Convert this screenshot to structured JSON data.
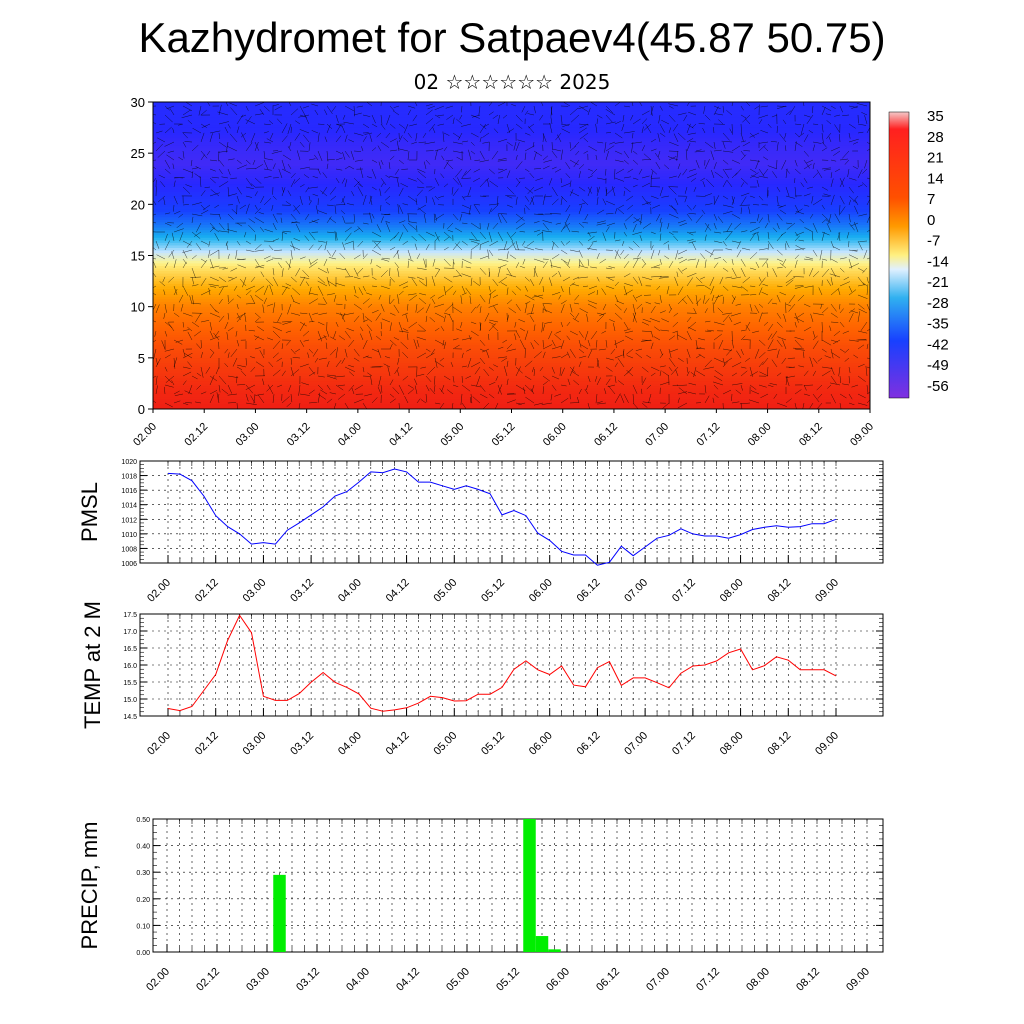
{
  "title": "Kazhydromet for Satpaev4(45.87 50.75)",
  "subtitle": "02 ☆☆☆☆☆☆ 2025",
  "time_ticks": [
    "02.00",
    "02.12",
    "03.00",
    "03.12",
    "04.00",
    "04.12",
    "05.00",
    "05.12",
    "06.00",
    "06.12",
    "07.00",
    "07.12",
    "08.00",
    "08.12",
    "09.00"
  ],
  "colors": {
    "pmsl": "#0000ff",
    "temp": "#ff0000",
    "precip": "#00ee00"
  },
  "chart_data": [
    {
      "type": "heatmap",
      "title": "",
      "ylabel": "",
      "ylim": [
        0,
        30
      ],
      "yticks": [
        "0",
        "5",
        "10",
        "15",
        "20",
        "25",
        "30"
      ],
      "colorbar_labels": [
        "35",
        "28",
        "21",
        "14",
        "7",
        "0",
        "-7",
        "-14",
        "-21",
        "-28",
        "-35",
        "-42",
        "-49",
        "-56"
      ],
      "colorbar_range": [
        -63,
        38
      ],
      "row_levels": [
        0,
        2,
        4,
        6,
        8,
        10,
        12,
        14,
        16,
        18,
        20,
        22,
        24,
        26,
        28,
        30
      ],
      "row_values": [
        22,
        20,
        17,
        14,
        10,
        6,
        -1,
        -10,
        -25,
        -38,
        -48,
        -56,
        -58,
        -57,
        -55,
        -54
      ]
    },
    {
      "type": "line",
      "ylabel": "PMSL",
      "ylim": [
        1006,
        1020
      ],
      "yticks": [
        "1006",
        "1008",
        "1010",
        "1012",
        "1014",
        "1016",
        "1018",
        "1020"
      ],
      "series": [
        {
          "values": [
            1018.3,
            1018.2,
            1017.3,
            1015.2,
            1012.5,
            1011.0,
            1010.0,
            1008.6,
            1008.8,
            1008.6,
            1010.5,
            1011.5,
            1012.6,
            1013.7,
            1015.2,
            1015.8,
            1017.1,
            1018.5,
            1018.4,
            1018.9,
            1018.5,
            1017.1,
            1017.1,
            1016.6,
            1016.1,
            1016.6,
            1016.1,
            1015.5,
            1012.6,
            1013.2,
            1012.5,
            1010.1,
            1009.1,
            1007.6,
            1007.1,
            1007.1,
            1005.7,
            1006.1,
            1008.3,
            1007.0,
            1008.2,
            1009.4,
            1009.8,
            1010.7,
            1010.0,
            1009.7,
            1009.7,
            1009.4,
            1009.9,
            1010.6,
            1010.9,
            1011.1,
            1010.9,
            1011.0,
            1011.4,
            1011.4,
            1012.0
          ]
        }
      ]
    },
    {
      "type": "line",
      "ylabel": "TEMP at 2 M",
      "ylim": [
        14.5,
        17.5
      ],
      "yticks": [
        "14.5",
        "15.0",
        "15.5",
        "16.0",
        "16.5",
        "17.0",
        "17.5"
      ],
      "series": [
        {
          "values": [
            14.72,
            14.66,
            14.78,
            15.25,
            15.72,
            16.72,
            17.46,
            16.95,
            15.08,
            14.96,
            14.96,
            15.16,
            15.49,
            15.78,
            15.49,
            15.34,
            15.15,
            14.73,
            14.64,
            14.68,
            14.74,
            14.88,
            15.08,
            15.04,
            14.94,
            14.95,
            15.14,
            15.14,
            15.34,
            15.87,
            16.12,
            15.86,
            15.72,
            15.97,
            15.41,
            15.36,
            15.92,
            16.1,
            15.4,
            15.62,
            15.62,
            15.48,
            15.33,
            15.76,
            15.97,
            16.0,
            16.12,
            16.36,
            16.47,
            15.86,
            15.98,
            16.24,
            16.14,
            15.86,
            15.86,
            15.86,
            15.68
          ]
        }
      ]
    },
    {
      "type": "bar",
      "ylabel": "PRECIP, mm",
      "ylim": [
        0,
        0.5
      ],
      "yticks": [
        "0.00",
        "0.10",
        "0.20",
        "0.30",
        "0.40",
        "0.50"
      ],
      "bars": [
        {
          "t": 9,
          "value": 0.29
        },
        {
          "t": 29,
          "value": 0.5
        },
        {
          "t": 30,
          "value": 0.06
        },
        {
          "t": 31,
          "value": 0.01
        }
      ]
    }
  ]
}
